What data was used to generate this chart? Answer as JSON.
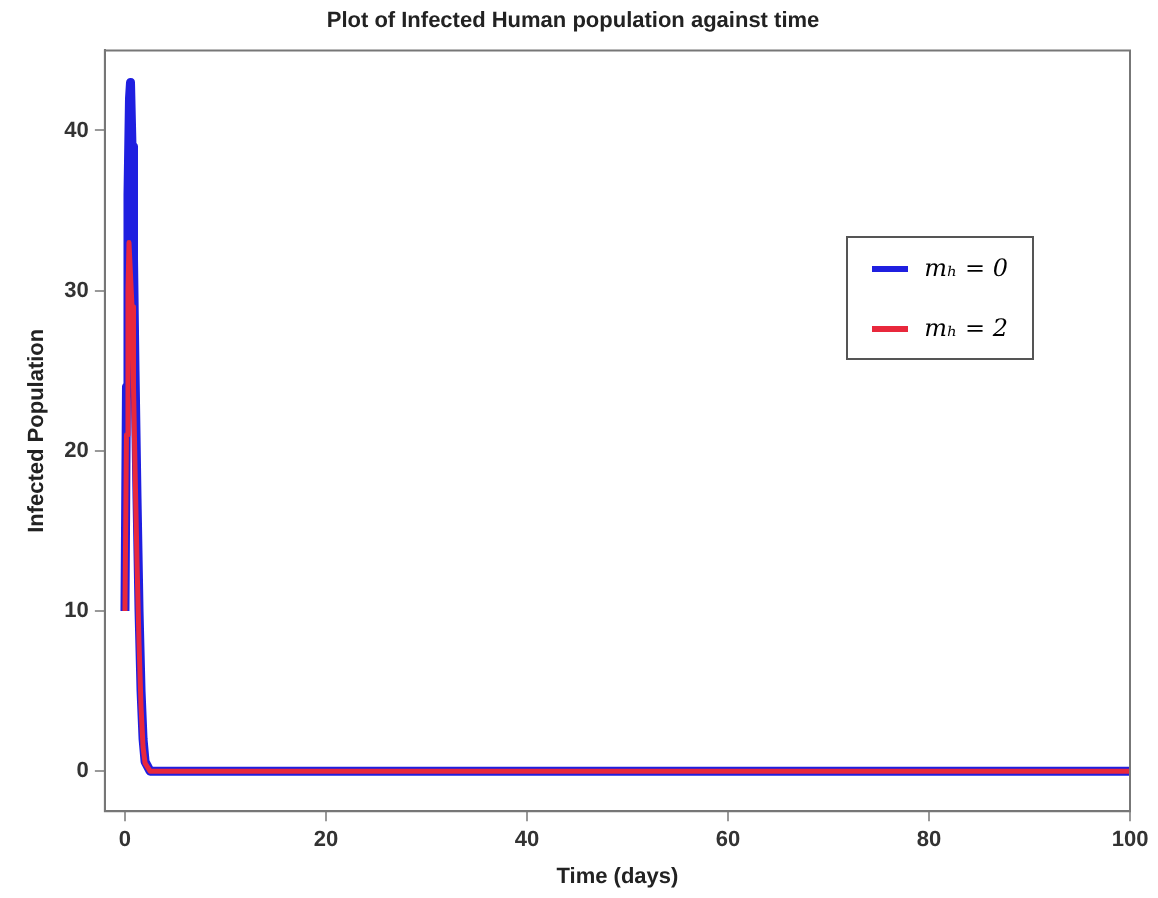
{
  "chart_data": {
    "type": "line",
    "title": "Plot of Infected Human population against time",
    "xlabel": "Time (days)",
    "ylabel": "Infected Population",
    "xlim": [
      -2,
      100
    ],
    "xticks": [
      0,
      20,
      40,
      60,
      80,
      100
    ],
    "ylim": [
      -2.5,
      45
    ],
    "yticks": [
      0,
      10,
      20,
      30,
      40
    ],
    "grid": false,
    "legend": "right",
    "marker": "none",
    "line_style": "solid",
    "series": [
      {
        "name": "mₕ = 0",
        "color": "#1f1fe0",
        "x": [
          0,
          0.15,
          0.3,
          0.45,
          0.55,
          0.7,
          0.85,
          1,
          1.2,
          1.4,
          1.6,
          1.8,
          2,
          2.5,
          3,
          5,
          100
        ],
        "values": [
          10,
          24,
          36,
          42,
          43,
          39,
          32,
          25,
          17,
          10,
          5,
          2,
          0.6,
          0,
          0,
          0,
          0
        ]
      },
      {
        "name": "mₕ = 2",
        "color": "#e8283c",
        "x": [
          0,
          0.15,
          0.3,
          0.4,
          0.5,
          0.7,
          0.85,
          1,
          1.2,
          1.4,
          1.6,
          1.8,
          2,
          2.5,
          3,
          5,
          100
        ],
        "values": [
          10,
          21,
          30,
          33,
          33,
          29,
          24,
          19,
          13,
          8,
          4,
          1.5,
          0.5,
          0,
          0,
          0,
          0
        ]
      }
    ]
  }
}
